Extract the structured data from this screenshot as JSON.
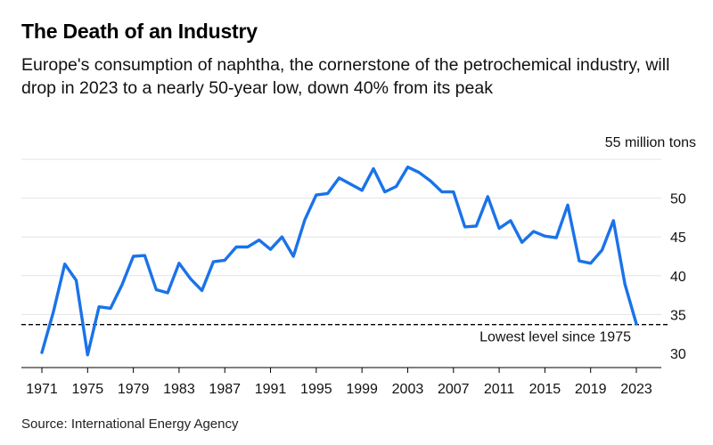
{
  "title": "The Death of an Industry",
  "subtitle": "Europe's consumption of naphtha, the cornerstone of the petrochemical industry, will drop in 2023 to a nearly 50-year low, down 40% from its peak",
  "source": "Source: International Energy Agency",
  "colors": {
    "line": "#1a73e8",
    "grid": "#e3e3e3",
    "reference": "#000000"
  },
  "chart_data": {
    "type": "line",
    "title": "The Death of an Industry",
    "xlabel": "",
    "ylabel": "million tons",
    "unit_label": "55 million tons",
    "xlim": [
      1970,
      2026
    ],
    "ylim": [
      29,
      56
    ],
    "y_ticks": [
      {
        "value": 55,
        "label": "55 million tons"
      },
      {
        "value": 50,
        "label": "50"
      },
      {
        "value": 45,
        "label": "45"
      },
      {
        "value": 40,
        "label": "40"
      },
      {
        "value": 35,
        "label": "35"
      },
      {
        "value": 30,
        "label": "30"
      }
    ],
    "x_ticks": [
      1971,
      1975,
      1979,
      1983,
      1987,
      1991,
      1995,
      1999,
      2003,
      2007,
      2011,
      2015,
      2019,
      2023
    ],
    "series": [
      {
        "name": "Europe naphtha consumption",
        "x": [
          1971,
          1972,
          1973,
          1974,
          1975,
          1976,
          1977,
          1978,
          1979,
          1980,
          1981,
          1982,
          1983,
          1984,
          1985,
          1986,
          1987,
          1988,
          1989,
          1990,
          1991,
          1992,
          1993,
          1994,
          1995,
          1996,
          1997,
          1998,
          1999,
          2000,
          2001,
          2002,
          2003,
          2004,
          2005,
          2006,
          2007,
          2008,
          2009,
          2010,
          2011,
          2012,
          2013,
          2014,
          2015,
          2016,
          2017,
          2018,
          2019,
          2020,
          2021,
          2022,
          2023
        ],
        "values": [
          30.1,
          35.3,
          41.5,
          39.4,
          29.8,
          36.0,
          35.8,
          38.8,
          42.5,
          42.6,
          38.2,
          37.8,
          41.6,
          39.6,
          38.1,
          41.8,
          42.0,
          43.7,
          43.7,
          44.6,
          43.4,
          45.0,
          42.5,
          47.2,
          50.4,
          50.6,
          52.6,
          51.8,
          51.0,
          53.8,
          50.8,
          51.5,
          54.0,
          53.3,
          52.2,
          50.8,
          50.8,
          46.3,
          46.4,
          50.2,
          46.1,
          47.1,
          44.3,
          45.7,
          45.1,
          44.9,
          49.1,
          41.9,
          41.6,
          43.3,
          47.1,
          38.9,
          33.8
        ]
      }
    ],
    "reference_line": {
      "value": 33.7,
      "label": "Lowest level since 1975"
    }
  }
}
